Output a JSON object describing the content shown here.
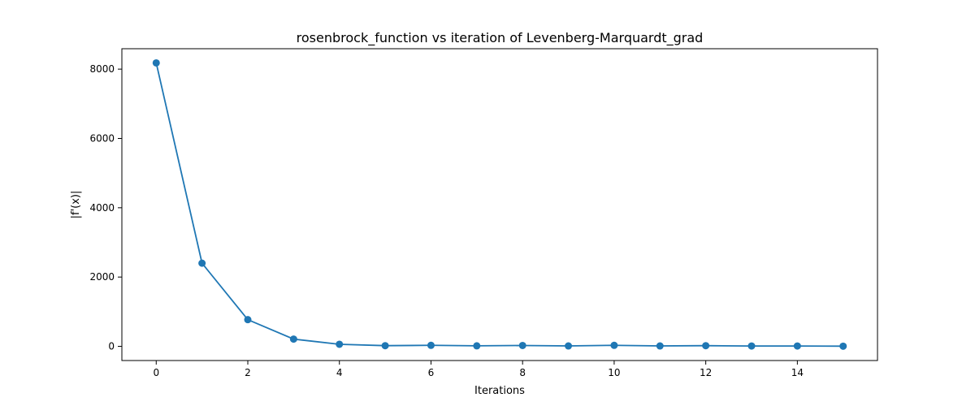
{
  "chart_data": {
    "type": "line",
    "title": "rosenbrock_function vs iteration of Levenberg-Marquardt_grad",
    "xlabel": "Iterations",
    "ylabel": "|f'(x)|",
    "x": [
      0,
      1,
      2,
      3,
      4,
      5,
      6,
      7,
      8,
      9,
      10,
      11,
      12,
      13,
      14,
      15
    ],
    "series": [
      {
        "values": [
          8180,
          2400,
          770,
          210,
          60,
          20,
          30,
          15,
          25,
          12,
          30,
          12,
          20,
          10,
          10,
          5
        ],
        "color": "#1f77b4",
        "marker": "circle"
      }
    ],
    "xlim": [
      -0.75,
      15.75
    ],
    "ylim": [
      -409,
      8589
    ],
    "xticks": [
      0,
      2,
      4,
      6,
      8,
      10,
      12,
      14
    ],
    "yticks": [
      0,
      2000,
      4000,
      6000,
      8000
    ],
    "grid": false
  }
}
